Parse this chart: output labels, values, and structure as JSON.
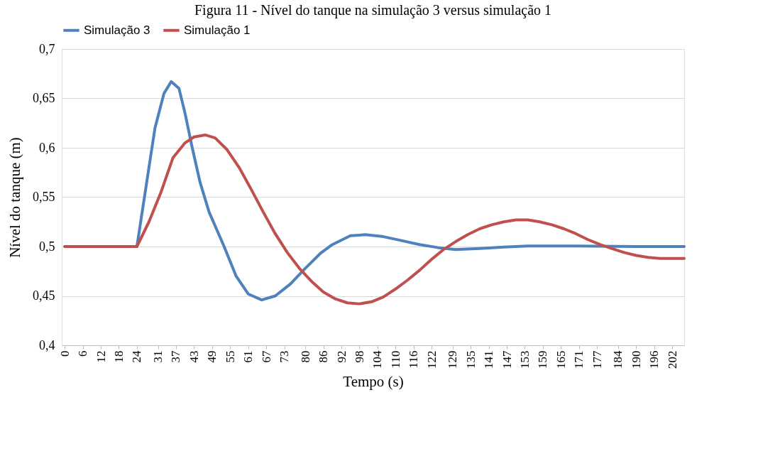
{
  "chart_data": {
    "type": "line",
    "title": "Figura 11 - Nível do tanque na simulação 3 versus simulação 1",
    "xlabel": "Tempo (s)",
    "ylabel": "Nível do tanque (m)",
    "xlim": [
      -1,
      206
    ],
    "xticks": [
      0,
      6,
      12,
      18,
      24,
      31,
      37,
      43,
      49,
      55,
      61,
      67,
      73,
      80,
      86,
      92,
      98,
      104,
      110,
      116,
      122,
      129,
      135,
      141,
      147,
      153,
      159,
      165,
      171,
      177,
      184,
      190,
      196,
      202
    ],
    "ylim": [
      0.4,
      0.7
    ],
    "yticks": [
      {
        "value": 0.4,
        "label": "0,4"
      },
      {
        "value": 0.45,
        "label": "0,45"
      },
      {
        "value": 0.5,
        "label": "0,5"
      },
      {
        "value": 0.55,
        "label": "0,55"
      },
      {
        "value": 0.6,
        "label": "0,6"
      },
      {
        "value": 0.65,
        "label": "0,65"
      },
      {
        "value": 0.7,
        "label": "0,7"
      }
    ],
    "grid": "y",
    "legend": "top",
    "line_style": "solid",
    "marker": "none",
    "series": [
      {
        "name": "Simulação 3",
        "color": "#4f81bd",
        "x": [
          0,
          24,
          27,
          30,
          33,
          35.4,
          38,
          40,
          42.4,
          45,
          48,
          53,
          57,
          61,
          65.5,
          70,
          75,
          80,
          85,
          89,
          95,
          100,
          106,
          112,
          118,
          124,
          130,
          138,
          146,
          154,
          170,
          190,
          206
        ],
        "values": [
          0.5,
          0.5,
          0.56,
          0.62,
          0.655,
          0.667,
          0.66,
          0.635,
          0.6,
          0.565,
          0.535,
          0.5,
          0.47,
          0.452,
          0.446,
          0.45,
          0.462,
          0.478,
          0.493,
          0.502,
          0.511,
          0.512,
          0.51,
          0.506,
          0.502,
          0.499,
          0.497,
          0.498,
          0.4995,
          0.5005,
          0.5005,
          0.5,
          0.5
        ]
      },
      {
        "name": "Simulação 1",
        "color": "#c0504d",
        "x": [
          0,
          24,
          28,
          32,
          36,
          40,
          43,
          46.7,
          50,
          54,
          58,
          62,
          66,
          70,
          74,
          78,
          82,
          86,
          90,
          94,
          98,
          102,
          106,
          110,
          114,
          118,
          122,
          126,
          130,
          134,
          138,
          142,
          146,
          150,
          154,
          158,
          162,
          166,
          170,
          174,
          178,
          182,
          186,
          190,
          194,
          198,
          206
        ],
        "values": [
          0.5,
          0.5,
          0.525,
          0.555,
          0.59,
          0.605,
          0.611,
          0.613,
          0.61,
          0.598,
          0.58,
          0.558,
          0.535,
          0.513,
          0.494,
          0.478,
          0.465,
          0.454,
          0.447,
          0.443,
          0.442,
          0.444,
          0.449,
          0.457,
          0.466,
          0.476,
          0.487,
          0.497,
          0.505,
          0.512,
          0.518,
          0.522,
          0.525,
          0.527,
          0.527,
          0.525,
          0.522,
          0.518,
          0.513,
          0.507,
          0.502,
          0.498,
          0.494,
          0.491,
          0.489,
          0.488,
          0.488
        ]
      }
    ]
  }
}
